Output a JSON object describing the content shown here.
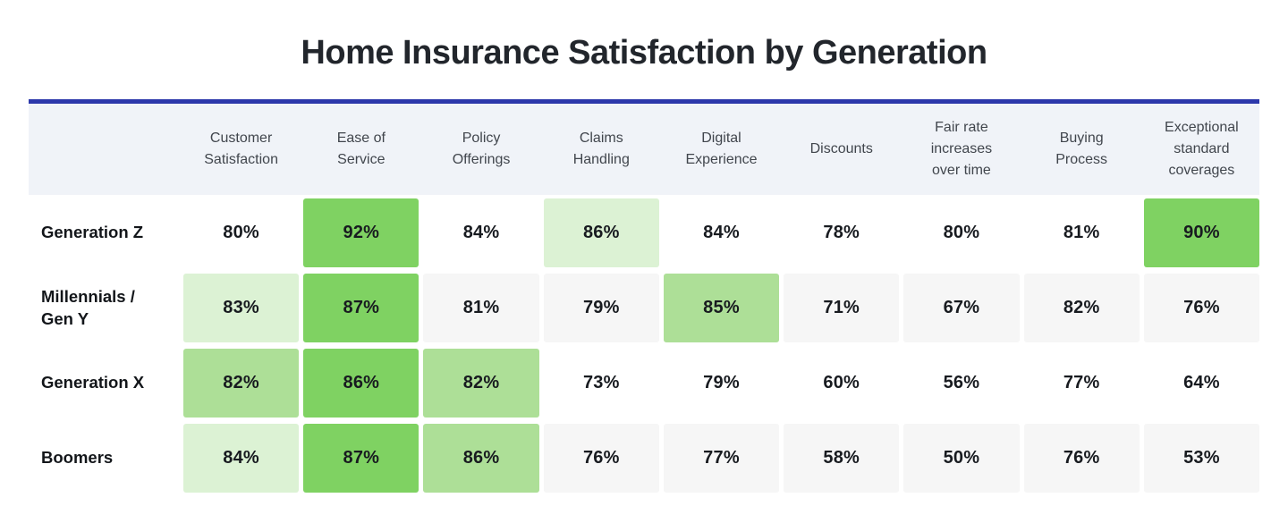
{
  "colors": {
    "rule-blue": "#2c38ab",
    "header-bg": "#f0f3f8",
    "header-text": "#41464d",
    "row-alt-bg": "#f6f6f6",
    "green-strong": "#7fd262",
    "green-medium": "#addf97",
    "green-light": "#dcf2d4",
    "title-color": "#22262c",
    "cell-text": "#181b20"
  },
  "chart_data": {
    "type": "heatmap",
    "title": "Home Insurance Satisfaction by Generation",
    "unit": "%",
    "value_range": [
      50,
      92
    ],
    "legend_position": "none",
    "columns": [
      "Customer\nSatisfaction",
      "Ease of\nService",
      "Policy\nOfferings",
      "Claims\nHandling",
      "Digital\nExperience",
      "Discounts",
      "Fair rate\nincreases\nover time",
      "Buying\nProcess",
      "Exceptional\nstandard\ncoverages"
    ],
    "rows": [
      {
        "label": "Generation Z",
        "values": [
          "80%",
          "92%",
          "84%",
          "86%",
          "84%",
          "78%",
          "80%",
          "81%",
          "90%"
        ],
        "numeric_values": [
          80,
          92,
          84,
          86,
          84,
          78,
          80,
          81,
          90
        ],
        "highlights": [
          "none",
          "strong",
          "none",
          "light",
          "none",
          "none",
          "none",
          "none",
          "strong"
        ]
      },
      {
        "label": "Millennials /\nGen Y",
        "values": [
          "83%",
          "87%",
          "81%",
          "79%",
          "85%",
          "71%",
          "67%",
          "82%",
          "76%"
        ],
        "numeric_values": [
          83,
          87,
          81,
          79,
          85,
          71,
          67,
          82,
          76
        ],
        "highlights": [
          "light",
          "strong",
          "none",
          "none",
          "medium",
          "none",
          "none",
          "none",
          "none"
        ]
      },
      {
        "label": "Generation X",
        "values": [
          "82%",
          "86%",
          "82%",
          "73%",
          "79%",
          "60%",
          "56%",
          "77%",
          "64%"
        ],
        "numeric_values": [
          82,
          86,
          82,
          73,
          79,
          60,
          56,
          77,
          64
        ],
        "highlights": [
          "medium",
          "strong",
          "medium",
          "none",
          "none",
          "none",
          "none",
          "none",
          "none"
        ]
      },
      {
        "label": "Boomers",
        "values": [
          "84%",
          "87%",
          "86%",
          "76%",
          "77%",
          "58%",
          "50%",
          "76%",
          "53%"
        ],
        "numeric_values": [
          84,
          87,
          86,
          76,
          77,
          58,
          50,
          76,
          53
        ],
        "highlights": [
          "light",
          "strong",
          "medium",
          "none",
          "none",
          "none",
          "none",
          "none",
          "none"
        ]
      }
    ]
  }
}
